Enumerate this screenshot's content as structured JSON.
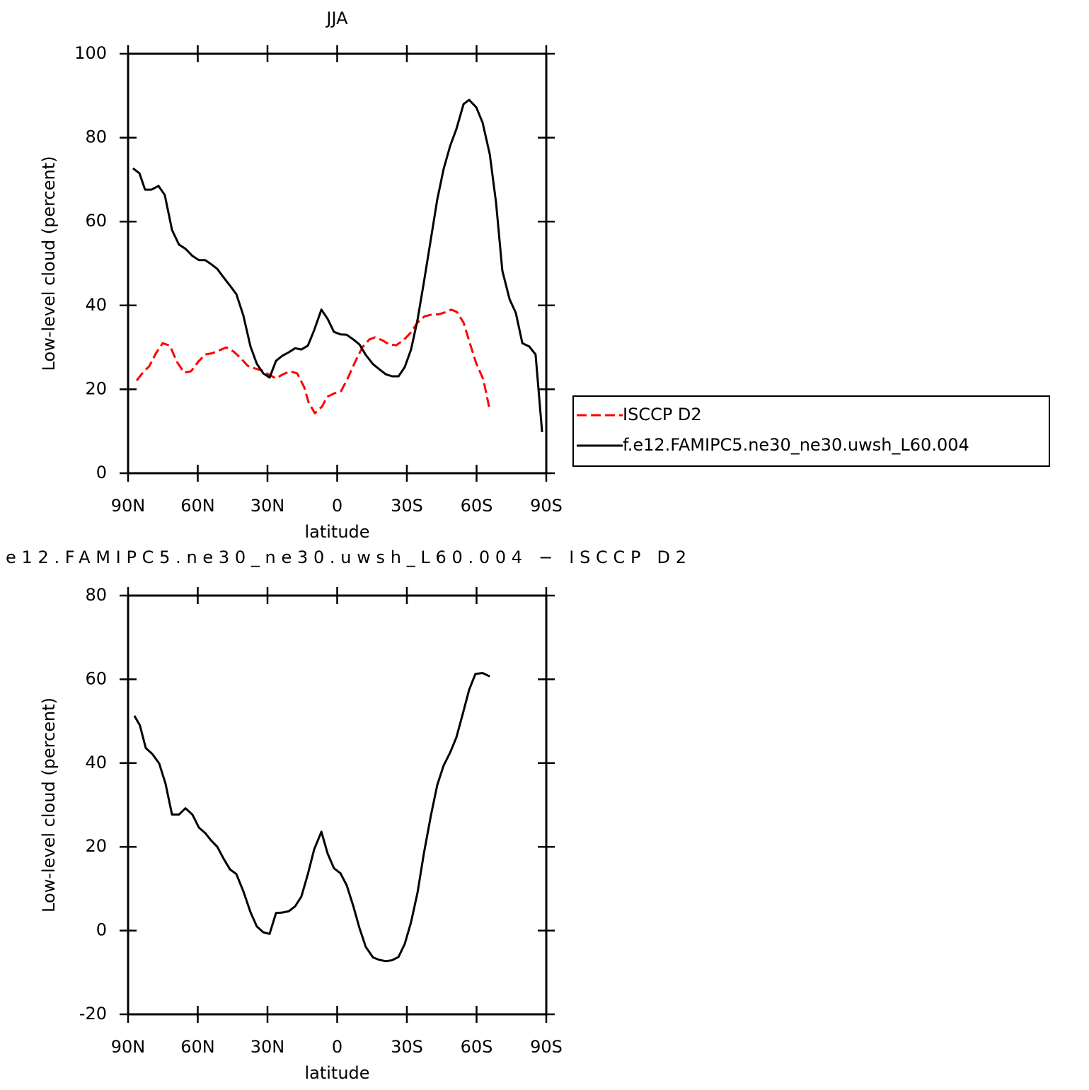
{
  "chart_data": [
    {
      "type": "line",
      "title": "JJA",
      "xlabel": "latitude",
      "ylabel": "Low-level cloud (percent)",
      "xlim": [
        90,
        -90
      ],
      "xticks": [
        {
          "value": 90,
          "label": "90N"
        },
        {
          "value": 60,
          "label": "60N"
        },
        {
          "value": 30,
          "label": "30N"
        },
        0,
        {
          "value": -30,
          "label": "30S"
        },
        {
          "value": -60,
          "label": "60S"
        },
        {
          "value": -90,
          "label": "90S"
        }
      ],
      "ylim": [
        0,
        100
      ],
      "yticks": [
        0,
        20,
        40,
        60,
        80,
        100
      ],
      "legend": "right",
      "series": [
        {
          "name": "ISCCP D2",
          "color": "#ff0000",
          "linestyle": "dashed",
          "x": [
            86.3,
            83.6,
            80.9,
            78.1,
            75.1,
            72.0,
            69.0,
            65.9,
            62.9,
            59.8,
            56.8,
            53.8,
            50.7,
            47.7,
            44.6,
            41.6,
            38.5,
            35.5,
            32.4,
            29.4,
            26.3,
            23.3,
            20.2,
            17.2,
            14.2,
            12.3,
            9.6,
            6.5,
            4.4,
            1.4,
            -1.7,
            -4.7,
            -7.8,
            -10.8,
            -13.9,
            -16.3,
            -19.4,
            -22.4,
            -25.4,
            -28.5,
            -31.5,
            -34.6,
            -37.6,
            -40.7,
            -43.7,
            -46.8,
            -49.2,
            -51.6,
            -54.4,
            -57.1,
            -59.9,
            -62.9,
            -65.7
          ],
          "values": [
            22.1,
            24.0,
            25.5,
            28.5,
            31.0,
            30.4,
            26.6,
            24.0,
            24.3,
            26.6,
            28.3,
            28.6,
            29.3,
            30.0,
            29.0,
            27.5,
            25.6,
            25.0,
            24.5,
            23.5,
            22.6,
            23.6,
            24.3,
            23.8,
            20.5,
            16.9,
            14.3,
            15.9,
            18.2,
            19.0,
            19.6,
            22.8,
            26.6,
            30.0,
            31.9,
            32.4,
            31.7,
            30.7,
            30.5,
            31.7,
            33.4,
            35.9,
            37.4,
            37.8,
            37.9,
            38.4,
            39.0,
            38.4,
            35.9,
            31.0,
            26.1,
            22.4,
            15.0
          ]
        },
        {
          "name": "f.e12.FAMIPC5.ne30_ne30.uwsh_L60.004",
          "color": "#000000",
          "linestyle": "solid",
          "x": [
            87.9,
            85.1,
            82.7,
            79.9,
            76.9,
            74.2,
            71.1,
            68.1,
            65.3,
            62.3,
            59.5,
            56.8,
            54.4,
            51.6,
            48.9,
            46.1,
            43.4,
            40.4,
            37.3,
            34.6,
            31.8,
            29.1,
            26.3,
            23.6,
            20.9,
            18.1,
            15.4,
            12.6,
            9.9,
            6.8,
            4.1,
            1.4,
            -1.4,
            -4.1,
            -6.9,
            -9.6,
            -12.3,
            -15.4,
            -18.1,
            -20.9,
            -23.6,
            -26.4,
            -29.1,
            -31.8,
            -34.6,
            -37.3,
            -40.4,
            -43.1,
            -45.8,
            -48.6,
            -51.3,
            -54.4,
            -56.8,
            -59.9,
            -62.6,
            -65.7,
            -68.4,
            -71.1,
            -74.2,
            -76.9,
            -79.7,
            -82.7,
            -85.4,
            -88.2
          ],
          "values": [
            72.7,
            71.5,
            67.6,
            67.6,
            68.5,
            66.3,
            58.0,
            54.5,
            53.5,
            51.8,
            50.8,
            50.8,
            49.9,
            48.7,
            46.7,
            44.7,
            42.7,
            37.6,
            30.2,
            26.1,
            23.8,
            22.8,
            26.8,
            28.0,
            28.8,
            29.8,
            29.5,
            30.4,
            34.1,
            39.0,
            36.8,
            33.7,
            33.1,
            33.0,
            31.9,
            30.7,
            28.2,
            26.0,
            24.8,
            23.6,
            23.1,
            23.1,
            25.3,
            29.5,
            36.6,
            45.5,
            56.0,
            65.3,
            72.5,
            78.0,
            82.0,
            88.0,
            89.0,
            87.2,
            83.6,
            76.0,
            64.4,
            48.3,
            41.5,
            38.2,
            31.0,
            30.2,
            28.3,
            9.8
          ]
        }
      ]
    },
    {
      "type": "line",
      "title": "e12.FAMIPC5.ne30_ne30.uwsh_L60.004 − ISCCP D2",
      "xlabel": "latitude",
      "ylabel": "Low-level cloud (percent)",
      "xlim": [
        90,
        -90
      ],
      "xticks": [
        {
          "value": 90,
          "label": "90N"
        },
        {
          "value": 60,
          "label": "60N"
        },
        {
          "value": 30,
          "label": "30N"
        },
        0,
        {
          "value": -30,
          "label": "30S"
        },
        {
          "value": -60,
          "label": "60S"
        },
        {
          "value": -90,
          "label": "90S"
        }
      ],
      "ylim": [
        -20,
        80
      ],
      "yticks": [
        -20,
        0,
        20,
        40,
        60,
        80
      ],
      "series": [
        {
          "color": "#000000",
          "linestyle": "solid",
          "x": [
            87.3,
            84.9,
            82.4,
            79.6,
            76.6,
            73.9,
            71.1,
            68.1,
            65.3,
            62.3,
            59.5,
            56.8,
            54.4,
            51.6,
            48.9,
            46.1,
            43.4,
            40.4,
            37.3,
            34.6,
            31.8,
            29.1,
            26.3,
            23.6,
            20.9,
            18.1,
            15.4,
            12.6,
            9.9,
            6.8,
            4.1,
            1.4,
            -1.4,
            -4.1,
            -6.9,
            -9.6,
            -12.3,
            -15.4,
            -18.1,
            -20.9,
            -23.6,
            -26.4,
            -29.1,
            -31.8,
            -34.6,
            -37.3,
            -40.4,
            -43.1,
            -45.8,
            -48.6,
            -51.3,
            -54.1,
            -56.8,
            -59.5,
            -62.6,
            -65.7
          ],
          "values": [
            51.3,
            49.0,
            43.6,
            42.2,
            39.9,
            35.1,
            27.7,
            27.7,
            29.2,
            27.7,
            24.6,
            23.3,
            21.6,
            20.0,
            17.2,
            14.6,
            13.5,
            9.4,
            4.4,
            1.0,
            -0.4,
            -0.8,
            4.2,
            4.3,
            4.6,
            5.8,
            8.1,
            13.5,
            19.4,
            23.6,
            18.4,
            14.9,
            13.7,
            10.8,
            5.9,
            0.6,
            -3.9,
            -6.4,
            -7.0,
            -7.3,
            -7.1,
            -6.3,
            -3.2,
            2.0,
            9.1,
            18.4,
            27.6,
            34.8,
            39.4,
            42.5,
            46.1,
            51.8,
            57.5,
            61.3,
            61.5,
            60.7
          ]
        }
      ]
    }
  ]
}
